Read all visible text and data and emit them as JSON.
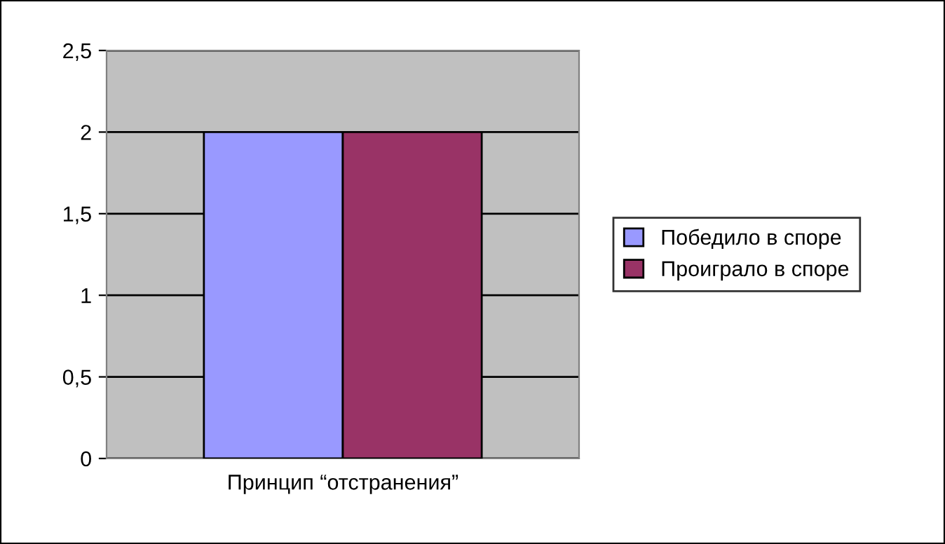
{
  "chart_data": {
    "type": "bar",
    "categories": [
      "Принцип “отстранения”"
    ],
    "series": [
      {
        "name": "Победило в споре",
        "color": "#9999ff",
        "values": [
          2
        ]
      },
      {
        "name": "Проиграло в споре",
        "color": "#993366",
        "values": [
          2
        ]
      }
    ],
    "ylim": [
      0,
      2.5
    ],
    "yticks": [
      0,
      {
        "value": 0.5,
        "label": "0,5"
      },
      1,
      {
        "value": 1.5,
        "label": "1,5"
      },
      2,
      {
        "value": 2.5,
        "label": "2,5"
      }
    ],
    "grid": "y",
    "legend": "right"
  }
}
